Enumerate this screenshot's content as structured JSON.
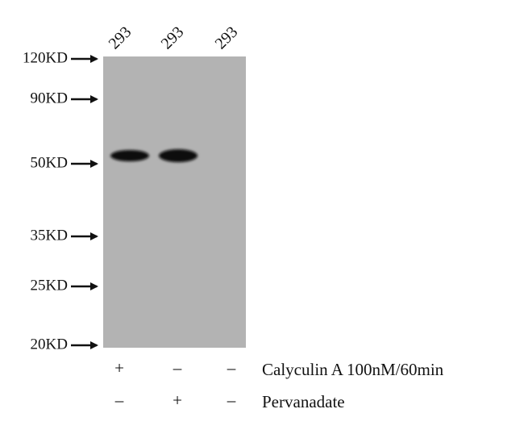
{
  "lanes": [
    "293",
    "293",
    "293"
  ],
  "markers": [
    "120KD",
    "90KD",
    "50KD",
    "35KD",
    "25KD",
    "20KD"
  ],
  "treatments": [
    {
      "name": "Calyculin A 100nM/60min",
      "signs": [
        "+",
        "–",
        "–"
      ]
    },
    {
      "name": "Pervanadate",
      "signs": [
        "–",
        "+",
        "–"
      ]
    }
  ]
}
